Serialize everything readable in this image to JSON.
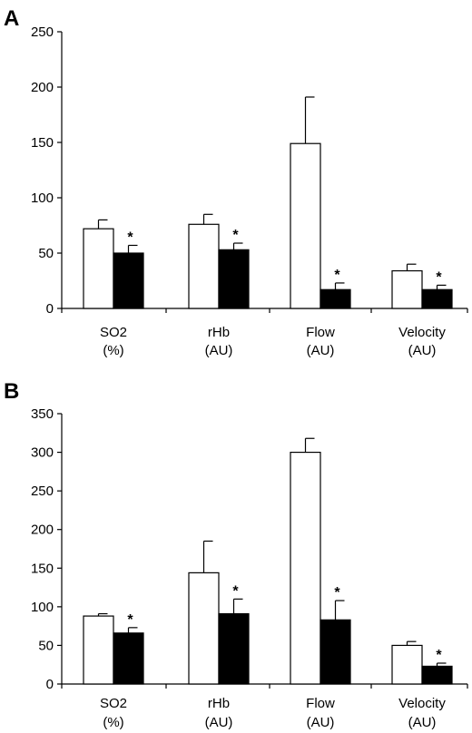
{
  "chart_data": [
    {
      "type": "bar",
      "panel_label": "A",
      "categories": [
        [
          "SO2",
          "(%)"
        ],
        [
          "rHb",
          "(AU)"
        ],
        [
          "Flow",
          "(AU)"
        ],
        [
          "Velocity",
          "(AU)"
        ]
      ],
      "series": [
        {
          "fill": "#ffffff",
          "values": [
            72,
            76,
            149,
            34
          ],
          "errors": [
            8,
            9,
            42,
            6
          ]
        },
        {
          "fill": "#000000",
          "values": [
            50,
            53,
            17,
            17
          ],
          "errors": [
            7,
            6,
            6,
            4
          ]
        }
      ],
      "significance": [
        false,
        true
      ],
      "significance_marker": "*",
      "ylim": [
        0,
        250
      ],
      "yticks": [
        0,
        50,
        100,
        150,
        200,
        250
      ],
      "grid": false,
      "title": "",
      "xlabel": "",
      "ylabel": ""
    },
    {
      "type": "bar",
      "panel_label": "B",
      "categories": [
        [
          "SO2",
          "(%)"
        ],
        [
          "rHb",
          "(AU)"
        ],
        [
          "Flow",
          "(AU)"
        ],
        [
          "Velocity",
          "(AU)"
        ]
      ],
      "series": [
        {
          "fill": "#ffffff",
          "values": [
            88,
            144,
            300,
            50
          ],
          "errors": [
            3,
            41,
            18,
            5
          ]
        },
        {
          "fill": "#000000",
          "values": [
            66,
            91,
            83,
            23
          ],
          "errors": [
            7,
            19,
            25,
            4
          ]
        }
      ],
      "significance": [
        false,
        true
      ],
      "significance_marker": "*",
      "ylim": [
        0,
        350
      ],
      "yticks": [
        0,
        50,
        100,
        150,
        200,
        250,
        300,
        350
      ],
      "grid": false,
      "title": "",
      "xlabel": "",
      "ylabel": ""
    }
  ]
}
